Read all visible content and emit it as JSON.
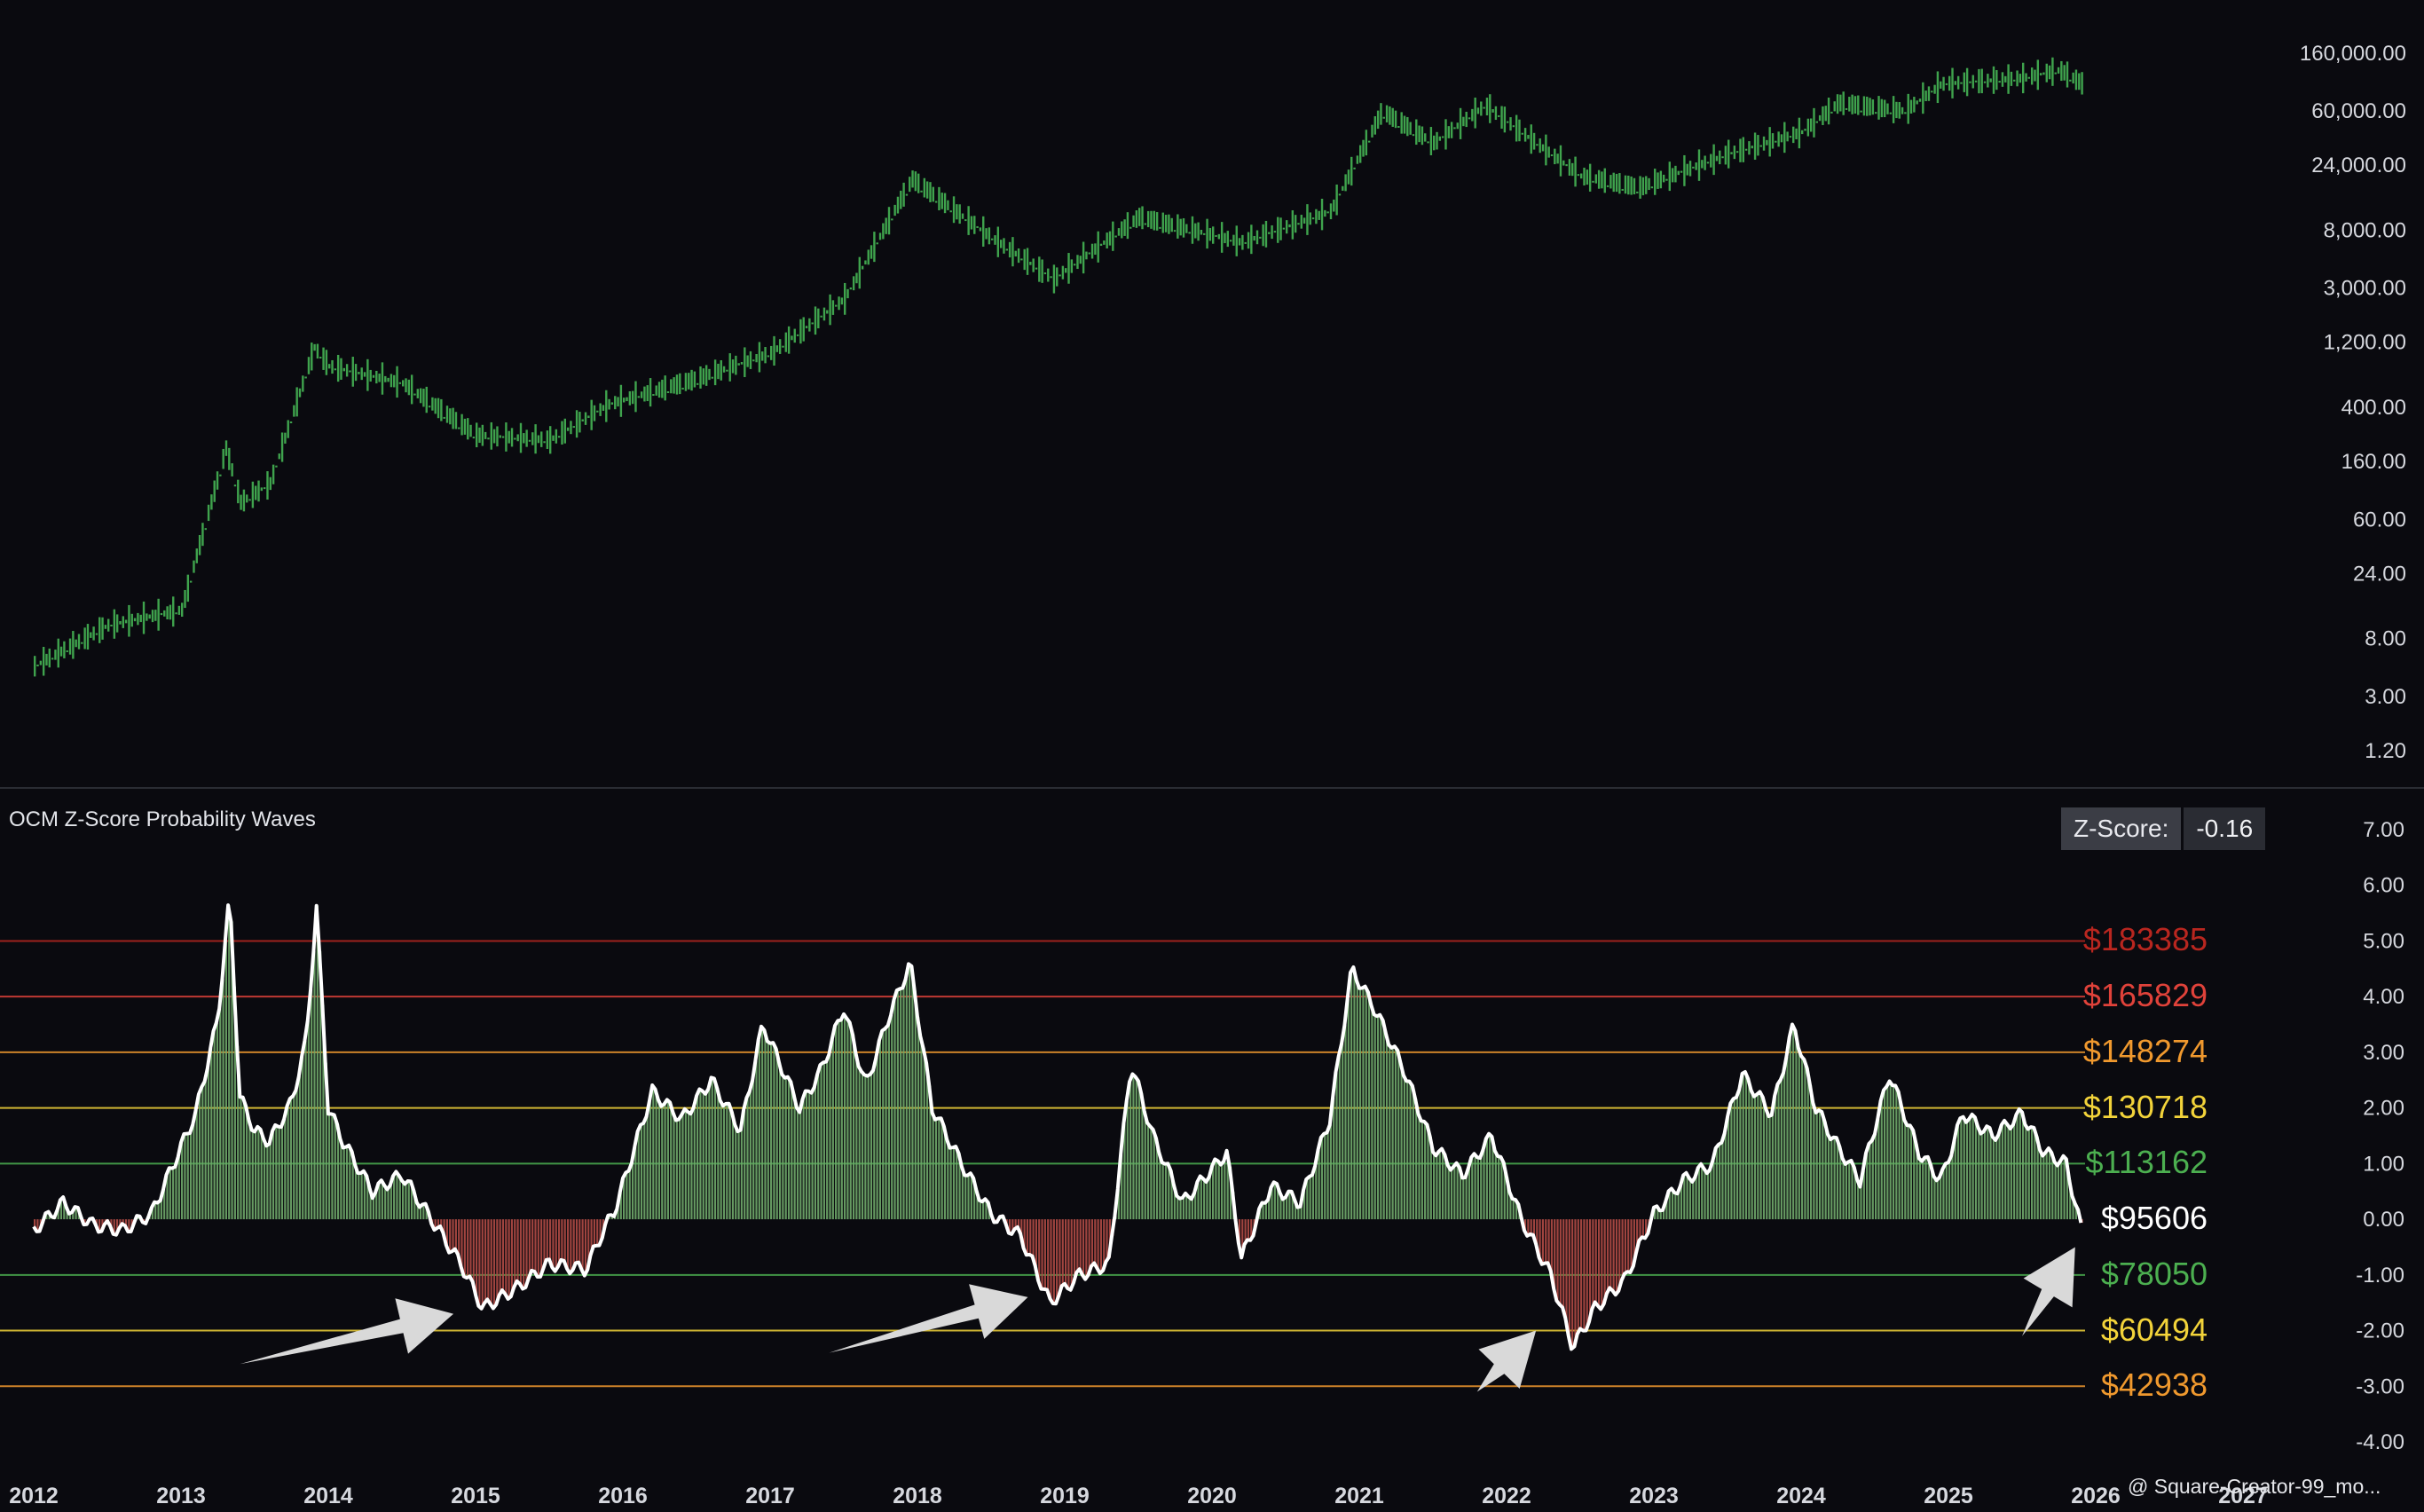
{
  "chart_data": [
    {
      "type": "bar",
      "panel": "price",
      "y_scale": "log",
      "ylim": [
        1.0,
        180000
      ],
      "y_ticks": [
        "160,000.00",
        "60,000.00",
        "24,000.00",
        "8,000.00",
        "3,000.00",
        "1,200.00",
        "400.00",
        "160.00",
        "60.00",
        "24.00",
        "8.00",
        "3.00",
        "1.20"
      ],
      "color": "#3fa34d",
      "series": [
        {
          "x": [
            2012.0,
            2012.5,
            2013.0,
            2013.3,
            2013.4,
            2013.6,
            2013.9,
            2014.0,
            2014.5,
            2015.0,
            2015.5,
            2015.9,
            2016.5,
            2017.0,
            2017.5,
            2017.96,
            2018.5,
            2018.92,
            2019.5,
            2020.2,
            2020.8,
            2021.15,
            2021.5,
            2021.85,
            2022.5,
            2022.9,
            2023.5,
            2024.0,
            2024.25,
            2024.7,
            2024.95,
            2025.5,
            2025.75,
            2025.9
          ],
          "y": [
            5,
            10,
            13,
            200,
            80,
            110,
            1100,
            800,
            600,
            250,
            230,
            420,
            650,
            1000,
            2500,
            19000,
            7000,
            3500,
            10000,
            6500,
            11000,
            60000,
            35000,
            66000,
            20000,
            16500,
            29000,
            42000,
            69000,
            60000,
            95000,
            105000,
            120000,
            96000
          ]
        }
      ]
    },
    {
      "type": "bar",
      "panel": "OCM Z-Score Probability Waves",
      "ylim": [
        -4.0,
        7.0
      ],
      "y_ticks": [
        "7.00",
        "6.00",
        "5.00",
        "4.00",
        "3.00",
        "2.00",
        "1.00",
        "0.00",
        "-1.00",
        "-2.00",
        "-3.00",
        "-4.00"
      ],
      "positive_color": "#6fa86a",
      "negative_color": "#b04a45",
      "line_color": "#ffffff",
      "series": [
        {
          "x": [
            2012.0,
            2012.2,
            2012.4,
            2012.6,
            2012.8,
            2012.95,
            2013.1,
            2013.25,
            2013.33,
            2013.4,
            2013.5,
            2013.6,
            2013.75,
            2013.85,
            2013.92,
            2014.0,
            2014.1,
            2014.3,
            2014.5,
            2014.7,
            2014.9,
            2015.05,
            2015.3,
            2015.5,
            2015.75,
            2015.85,
            2015.95,
            2016.2,
            2016.4,
            2016.6,
            2016.8,
            2016.95,
            2017.2,
            2017.35,
            2017.5,
            2017.65,
            2017.8,
            2017.95,
            2018.1,
            2018.3,
            2018.5,
            2018.7,
            2018.9,
            2019.1,
            2019.3,
            2019.45,
            2019.6,
            2019.8,
            2020.1,
            2020.2,
            2020.4,
            2020.6,
            2020.8,
            2020.95,
            2021.1,
            2021.3,
            2021.5,
            2021.7,
            2021.9,
            2022.1,
            2022.3,
            2022.45,
            2022.6,
            2022.8,
            2023.0,
            2023.2,
            2023.4,
            2023.6,
            2023.8,
            2023.95,
            2024.1,
            2024.25,
            2024.4,
            2024.6,
            2024.8,
            2024.95,
            2025.1,
            2025.3,
            2025.5,
            2025.65,
            2025.8,
            2025.9
          ],
          "y": [
            -0.2,
            0.3,
            -0.1,
            -0.2,
            0.1,
            1.0,
            1.9,
            3.6,
            5.8,
            2.2,
            1.6,
            1.4,
            2.1,
            3.2,
            5.6,
            2.0,
            1.4,
            0.5,
            0.8,
            0.0,
            -0.8,
            -1.6,
            -1.2,
            -0.8,
            -0.9,
            -0.3,
            0.2,
            2.3,
            1.8,
            2.5,
            1.6,
            3.5,
            2.0,
            2.7,
            3.8,
            2.4,
            3.6,
            4.6,
            2.0,
            1.0,
            0.1,
            -0.3,
            -1.5,
            -1.0,
            -0.8,
            2.8,
            1.5,
            0.3,
            1.2,
            -0.7,
            0.6,
            0.3,
            1.8,
            4.5,
            3.8,
            2.7,
            1.3,
            0.8,
            1.5,
            0.0,
            -1.0,
            -2.3,
            -1.6,
            -1.1,
            0.1,
            0.7,
            1.0,
            2.6,
            1.9,
            3.5,
            2.0,
            1.3,
            0.7,
            2.6,
            1.2,
            0.7,
            1.9,
            1.5,
            1.9,
            1.2,
            1.0,
            -0.16
          ]
        }
      ],
      "levels": [
        {
          "z": 5.0,
          "price": "$183385",
          "color": "#b8261f"
        },
        {
          "z": 4.0,
          "price": "$165829",
          "color": "#e0423a"
        },
        {
          "z": 3.0,
          "price": "$148274",
          "color": "#f0992e"
        },
        {
          "z": 2.0,
          "price": "$130718",
          "color": "#f2d33a"
        },
        {
          "z": 1.0,
          "price": "$113162",
          "color": "#4caf50"
        },
        {
          "z": 0.0,
          "price": "$95606",
          "color": "#ffffff"
        },
        {
          "z": -1.0,
          "price": "$78050",
          "color": "#4caf50"
        },
        {
          "z": -2.0,
          "price": "$60494",
          "color": "#f2d33a"
        },
        {
          "z": -3.0,
          "price": "$42938",
          "color": "#f0992e"
        }
      ],
      "annotations": [
        {
          "type": "arrow",
          "from": [
            2013.4,
            -2.6
          ],
          "to": [
            2014.85,
            -1.7
          ]
        },
        {
          "type": "arrow",
          "from": [
            2017.4,
            -2.4
          ],
          "to": [
            2018.75,
            -1.4
          ]
        },
        {
          "type": "arrow",
          "from": [
            2021.8,
            -3.1
          ],
          "to": [
            2022.2,
            -2.0
          ]
        },
        {
          "type": "arrow",
          "from": [
            2025.5,
            -2.1
          ],
          "to": [
            2025.86,
            -0.5
          ]
        }
      ]
    }
  ],
  "x_ticks": [
    "2012",
    "2013",
    "2014",
    "2015",
    "2016",
    "2017",
    "2018",
    "2019",
    "2020",
    "2021",
    "2022",
    "2023",
    "2024",
    "2025",
    "2026",
    "2027"
  ],
  "panel_title": "OCM Z-Score Probability Waves",
  "zscore_label": "Z-Score:",
  "zscore_value": "-0.16",
  "watermark": "@ Square-Creator-99_mo..."
}
